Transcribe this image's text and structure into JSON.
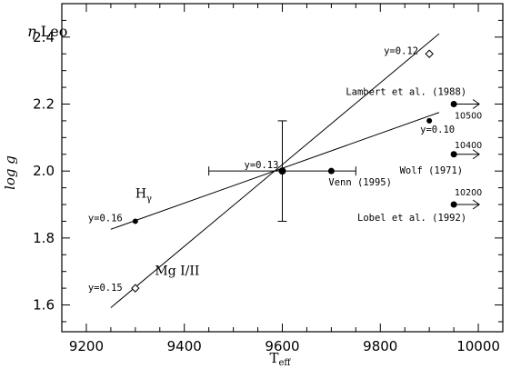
{
  "chart_data": {
    "type": "scatter",
    "title_italic": "η",
    "title_rest": " Leo",
    "xlabel_main": "T",
    "xlabel_sub": "eff",
    "ylabel": "log g",
    "xlim": [
      9150,
      10050
    ],
    "ylim": [
      1.52,
      2.5
    ],
    "xticks": [
      9200,
      9400,
      9600,
      9800,
      10000
    ],
    "yticks": [
      1.6,
      1.8,
      2.0,
      2.2,
      2.4
    ],
    "xtick_labels": [
      "9200",
      "9400",
      "9600",
      "9800",
      "10000"
    ],
    "ytick_labels": [
      "1.6",
      "1.8",
      "2.0",
      "2.2",
      "2.4"
    ],
    "fit_lines": [
      {
        "label_main": "H",
        "label_sub": "γ",
        "x": [
          9250,
          9920
        ],
        "y": [
          1.826,
          2.175
        ],
        "label_x": 9300,
        "label_y": 1.92
      },
      {
        "label_main": "Mg I/II",
        "label_sub": "",
        "x": [
          9250,
          9920
        ],
        "y": [
          1.592,
          2.41
        ],
        "label_x": 9340,
        "label_y": 1.69
      }
    ],
    "points": [
      {
        "x": 9300,
        "y": 1.85,
        "marker": "dot",
        "label": "y=0.16"
      },
      {
        "x": 9300,
        "y": 1.65,
        "marker": "diamond",
        "label": "y=0.15"
      },
      {
        "x": 9600,
        "y": 2.0,
        "marker": "dot-large",
        "label": "y=0.13"
      },
      {
        "x": 9900,
        "y": 2.15,
        "marker": "dot",
        "label": "y=0.10"
      },
      {
        "x": 9900,
        "y": 2.35,
        "marker": "diamond",
        "label": "y=0.12"
      }
    ],
    "error_bar": {
      "x": 9600,
      "y": 2.0,
      "xerr": 150,
      "yerr": 0.15
    },
    "literature": [
      {
        "x": 9700,
        "y": 2.0,
        "label": "Venn (1995)",
        "arrow": false,
        "temp": ""
      },
      {
        "x": 9950,
        "y": 2.2,
        "label": "Lambert et al. (1988)",
        "arrow": true,
        "temp": "10500"
      },
      {
        "x": 9950,
        "y": 2.05,
        "label": "Wolf (1971)",
        "arrow": true,
        "temp": "10400"
      },
      {
        "x": 9950,
        "y": 1.9,
        "label": "Lobel et al. (1992)",
        "arrow": true,
        "temp": "10200"
      }
    ],
    "grid": false,
    "legend": "none"
  }
}
